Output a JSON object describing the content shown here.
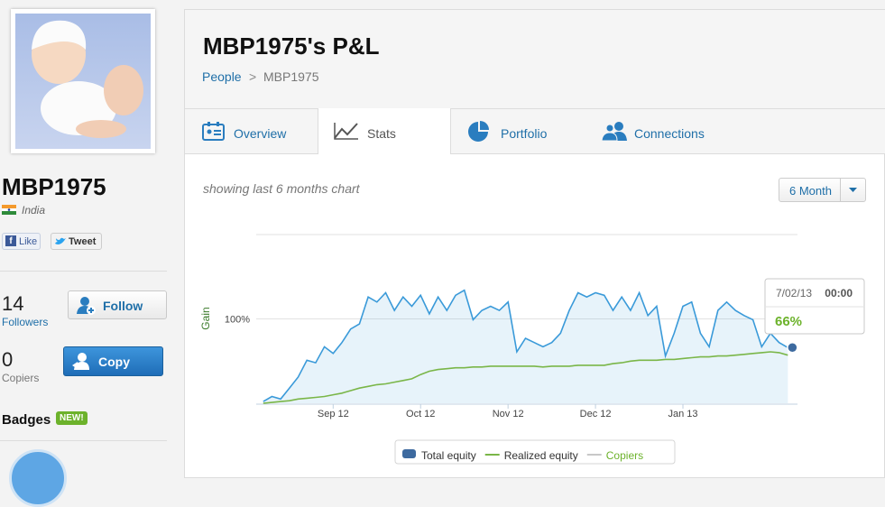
{
  "profile": {
    "name": "MBP1975",
    "country": "India",
    "like": "Like",
    "tweet": "Tweet",
    "followers": 14,
    "followers_label": "Followers",
    "follow": "Follow",
    "copiers": 0,
    "copiers_label": "Copiers",
    "copy": "Copy",
    "badges": "Badges",
    "badge_new": "NEW!"
  },
  "header": {
    "title": "MBP1975's P&L",
    "breadcrumb": [
      "People",
      ">",
      "MBP1975"
    ]
  },
  "tabs": [
    "Overview",
    "Stats",
    "Portfolio",
    "Connections"
  ],
  "chart_header": {
    "caption": "showing last 6 months chart",
    "range": "6 Month"
  },
  "chart_data": {
    "type": "line",
    "y_label": "Gain",
    "x": [
      0.2,
      0.3,
      0.4,
      0.5,
      0.6,
      0.7,
      0.8,
      0.9,
      1.0,
      1.1,
      1.2,
      1.3,
      1.4,
      1.5,
      1.6,
      1.7,
      1.8,
      1.9,
      2.0,
      2.1,
      2.2,
      2.3,
      2.4,
      2.5,
      2.6,
      2.7,
      2.8,
      2.9,
      3.0,
      3.1,
      3.2,
      3.3,
      3.4,
      3.5,
      3.6,
      3.7,
      3.8,
      3.9,
      4.0,
      4.1,
      4.2,
      4.3,
      4.4,
      4.5,
      4.6,
      4.7,
      4.8,
      4.9,
      5.0,
      5.1,
      5.2,
      5.3,
      5.4,
      5.5,
      5.6,
      5.7,
      5.8,
      5.9,
      6.0,
      6.1,
      6.2
    ],
    "xlim": [
      0.12,
      6.31
    ],
    "xticks": [
      {
        "value": 1,
        "label": "Sep 12"
      },
      {
        "value": 2,
        "label": "Oct 12"
      },
      {
        "value": 3,
        "label": "Nov 12"
      },
      {
        "value": 4,
        "label": "Dec 12"
      },
      {
        "value": 5,
        "label": "Jan 13"
      }
    ],
    "ylim": [
      0,
      200
    ],
    "yticks": [
      {
        "value": 100,
        "label": "100%"
      }
    ],
    "grid": true,
    "series": [
      {
        "name": "Total equity",
        "color": "#3a9ad9",
        "area": true,
        "values": [
          2,
          8,
          5,
          18,
          31,
          51,
          48,
          67,
          59,
          72,
          88,
          94,
          126,
          120,
          131,
          110,
          126,
          115,
          128,
          106,
          126,
          110,
          128,
          134,
          99,
          110,
          115,
          110,
          120,
          61,
          77,
          72,
          67,
          72,
          83,
          110,
          131,
          126,
          131,
          128,
          110,
          126,
          110,
          131,
          104,
          115,
          56,
          83,
          115,
          120,
          83,
          67,
          110,
          120,
          110,
          104,
          99,
          67,
          83,
          72,
          66
        ]
      },
      {
        "name": "Realized equity",
        "color": "#7ab648",
        "values": [
          0,
          1,
          2,
          3,
          5,
          6,
          7,
          8,
          10,
          12,
          15,
          18,
          20,
          22,
          23,
          25,
          27,
          29,
          34,
          38,
          40,
          41,
          42,
          42,
          43,
          43,
          44,
          44,
          44,
          44,
          44,
          44,
          43,
          44,
          44,
          44,
          45,
          45,
          45,
          45,
          47,
          48,
          50,
          51,
          51,
          51,
          52,
          52,
          53,
          54,
          55,
          55,
          56,
          56,
          57,
          58,
          59,
          60,
          61,
          60,
          57
        ]
      },
      {
        "name": "Copiers",
        "color": "#c8c8c8",
        "values": [
          null,
          null,
          null,
          null,
          null,
          null,
          null,
          null,
          null,
          null,
          null,
          null,
          null,
          null,
          null,
          null,
          null,
          null,
          null,
          null,
          null,
          null,
          null,
          null,
          null,
          null,
          null,
          null,
          null,
          null,
          null,
          null,
          null,
          null,
          null,
          null,
          null,
          null,
          null,
          null,
          null,
          null,
          null,
          null,
          null,
          null,
          null,
          null,
          null,
          null,
          null,
          null,
          null,
          null,
          null,
          null,
          null,
          null,
          null,
          null,
          null
        ]
      }
    ],
    "tooltip": {
      "date": "7/02/13",
      "time": "00:00",
      "label": "66%"
    }
  }
}
